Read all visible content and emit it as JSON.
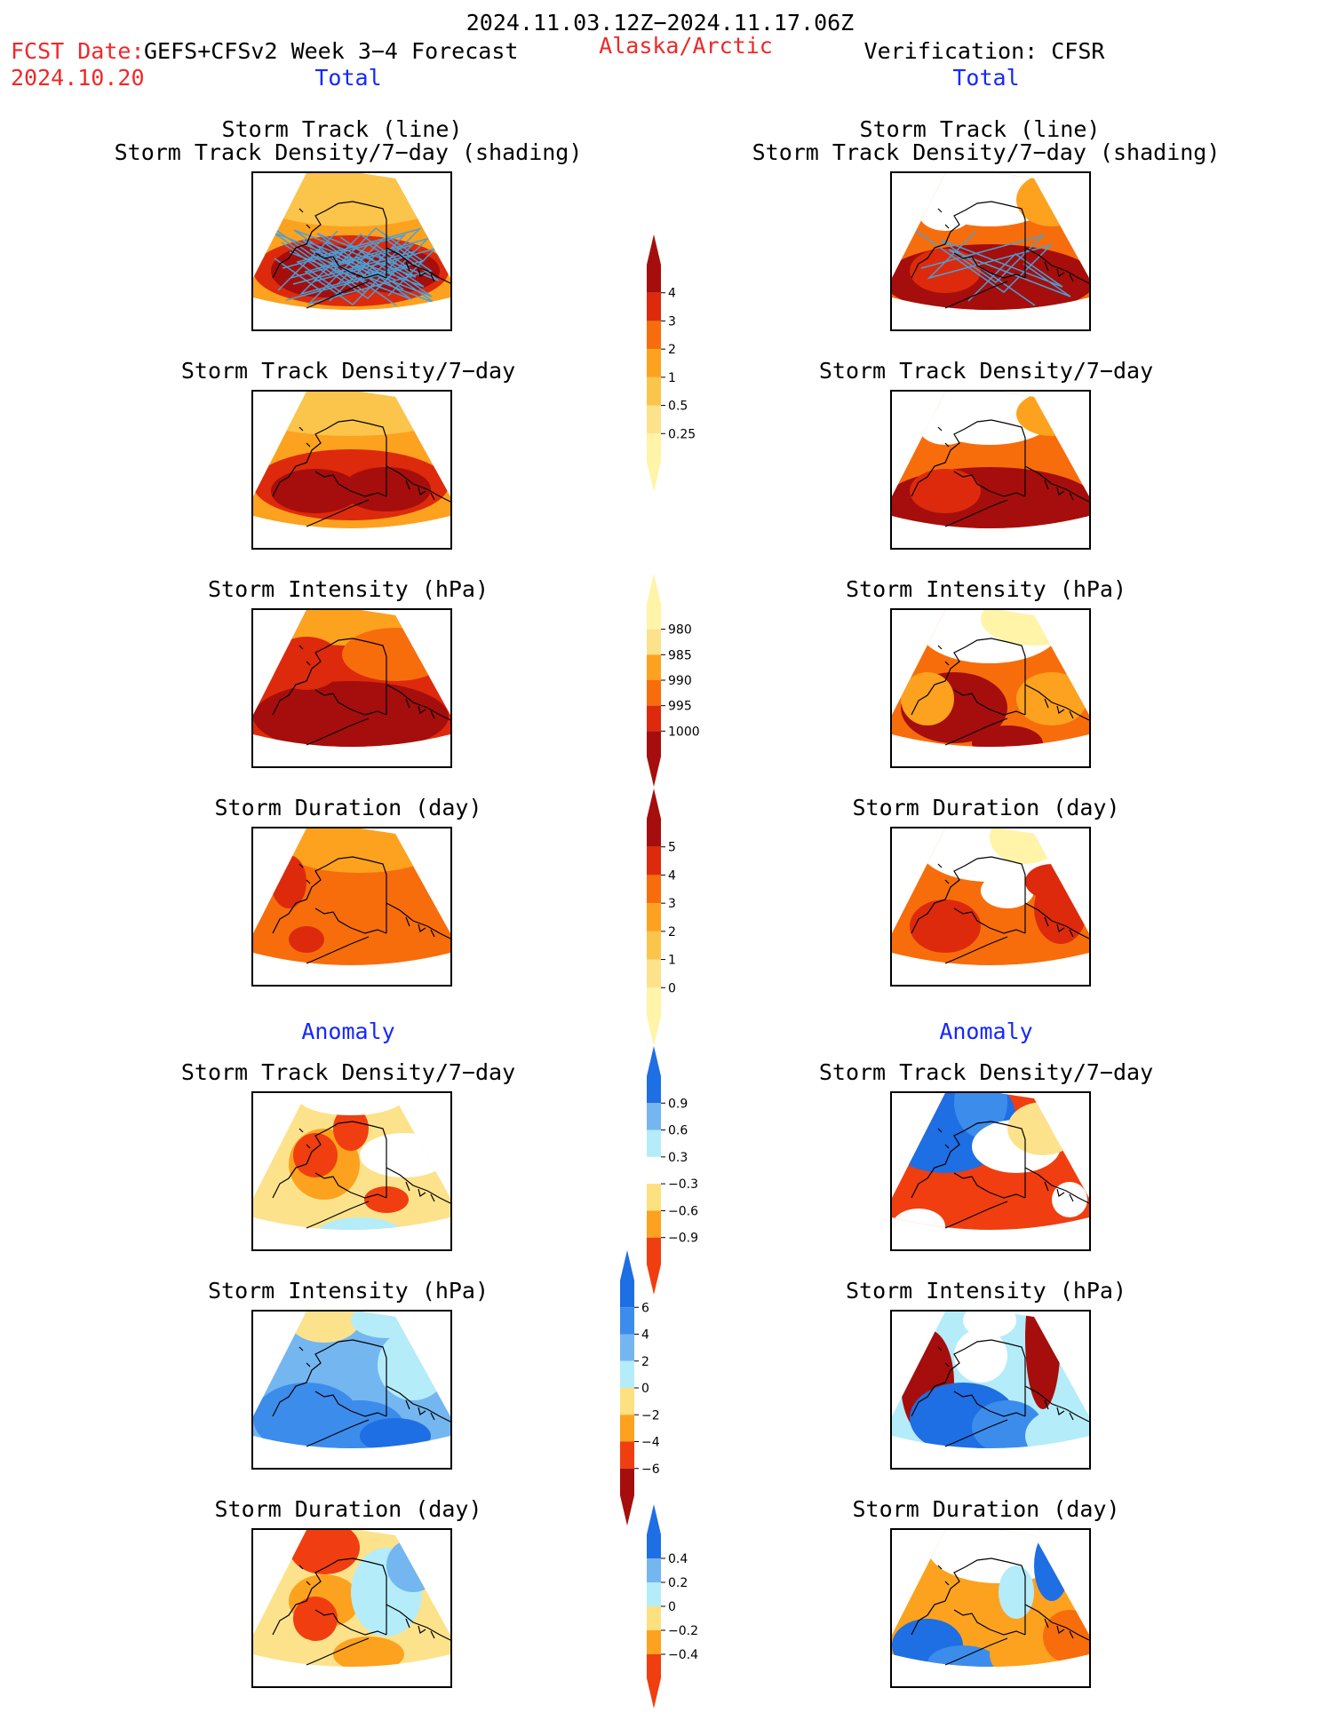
{
  "header": {
    "date_range": "2024.11.03.12Z−2024.11.17.06Z",
    "fcst_label": "FCST Date:",
    "fcst_date": "2024.10.20",
    "forecast_name": "GEFS+CFSv2 Week 3−4 Forecast",
    "region": "Alaska/Arctic",
    "verification": "Verification: CFSR"
  },
  "columns": [
    {
      "total_label": "Total",
      "anomaly_label": "Anomaly"
    },
    {
      "total_label": "Total",
      "anomaly_label": "Anomaly"
    }
  ],
  "panel_titles": {
    "track_line": "Storm Track (line)",
    "track_shading": "Storm Track Density/7−day (shading)",
    "density": "Storm Track Density/7−day",
    "intensity": "Storm Intensity (hPa)",
    "duration": "Storm Duration (day)"
  },
  "colorbars": [
    {
      "id": "density_total",
      "ticks": [
        "0.25",
        "0.5",
        "1",
        "2",
        "3",
        "4"
      ],
      "colors": [
        "#fff4a8",
        "#fde28c",
        "#fbc44b",
        "#fca21e",
        "#f76d0c",
        "#dd2a0c",
        "#a50e0c"
      ]
    },
    {
      "id": "intensity_total",
      "ticks": [
        "980",
        "985",
        "990",
        "995",
        "1000"
      ],
      "colors": [
        "#a50e0c",
        "#dd2a0c",
        "#f76d0c",
        "#fca21e",
        "#fde28c",
        "#fff4a8"
      ]
    },
    {
      "id": "duration_total",
      "ticks": [
        "0",
        "1",
        "2",
        "3",
        "4",
        "5"
      ],
      "colors": [
        "#fff4a8",
        "#fde28c",
        "#fbc44b",
        "#fca21e",
        "#f76d0c",
        "#dd2a0c",
        "#a50e0c"
      ]
    },
    {
      "id": "density_anom",
      "ticks": [
        "0.9",
        "0.6",
        "0.3",
        "−0.3",
        "−0.6",
        "−0.9"
      ],
      "colors": [
        "#f03e10",
        "#fca21e",
        "#fde080",
        "#ffffff",
        "#b4ecfa",
        "#74b6f0",
        "#1e6ee4"
      ]
    },
    {
      "id": "intensity_anom",
      "ticks": [
        "6",
        "4",
        "2",
        "0",
        "−2",
        "−4",
        "−6"
      ],
      "colors": [
        "#a50e0c",
        "#f03e10",
        "#fca21e",
        "#fde080",
        "#b4ecfa",
        "#74b6f0",
        "#3c8ceb",
        "#1e6ee4"
      ]
    },
    {
      "id": "duration_anom",
      "ticks": [
        "0.4",
        "0.2",
        "0",
        "−0.2",
        "−0.4"
      ],
      "colors": [
        "#f03e10",
        "#fca21e",
        "#fde080",
        "#b4ecfa",
        "#74b6f0",
        "#1e6ee4"
      ]
    }
  ],
  "colors": {
    "title_red": "#f02828",
    "label_blue": "#1428ff",
    "track_line": "#4b9fd5"
  }
}
